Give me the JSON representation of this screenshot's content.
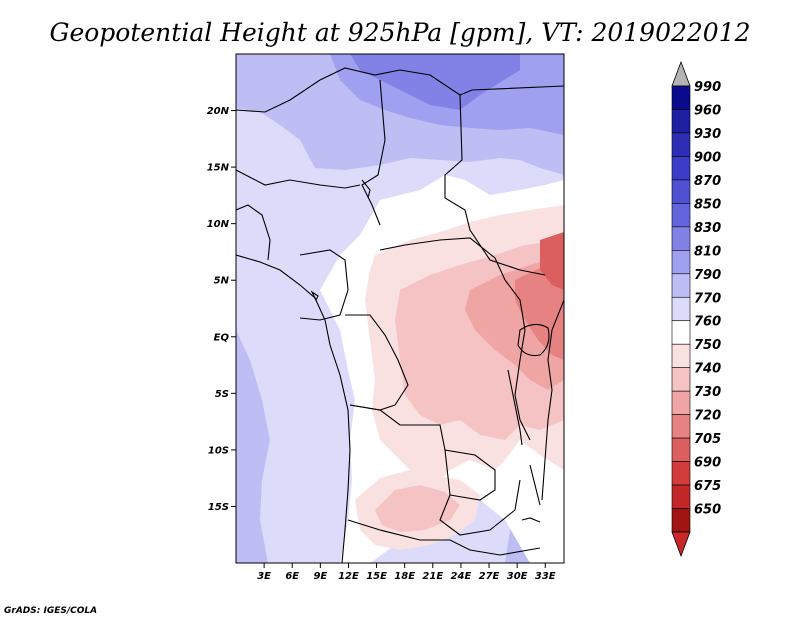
{
  "title": "Geopotential Height at 925hPa [gpm], VT: 2019022012",
  "footer": "GrADS: IGES/COLA",
  "map": {
    "lon_range": [
      0,
      35
    ],
    "lat_range": [
      -20,
      25
    ],
    "lat_ticks": [
      {
        "value": 20,
        "label": "20N"
      },
      {
        "value": 15,
        "label": "15N"
      },
      {
        "value": 10,
        "label": "10N"
      },
      {
        "value": 5,
        "label": "5N"
      },
      {
        "value": 0,
        "label": "EQ"
      },
      {
        "value": -5,
        "label": "5S"
      },
      {
        "value": -10,
        "label": "10S"
      },
      {
        "value": -15,
        "label": "15S"
      }
    ],
    "lon_ticks": [
      {
        "value": 3,
        "label": "3E"
      },
      {
        "value": 6,
        "label": "6E"
      },
      {
        "value": 9,
        "label": "9E"
      },
      {
        "value": 12,
        "label": "12E"
      },
      {
        "value": 15,
        "label": "15E"
      },
      {
        "value": 18,
        "label": "18E"
      },
      {
        "value": 21,
        "label": "21E"
      },
      {
        "value": 24,
        "label": "24E"
      },
      {
        "value": 27,
        "label": "27E"
      },
      {
        "value": 30,
        "label": "30E"
      },
      {
        "value": 33,
        "label": "33E"
      }
    ]
  },
  "colorbar": {
    "levels": [
      {
        "label": "990",
        "color": "#0a0a8c"
      },
      {
        "label": "960",
        "color": "#1e1ea0"
      },
      {
        "label": "930",
        "color": "#2d2db4"
      },
      {
        "label": "900",
        "color": "#3c3cc8"
      },
      {
        "label": "870",
        "color": "#5050d2"
      },
      {
        "label": "850",
        "color": "#6464dc"
      },
      {
        "label": "830",
        "color": "#8282e6"
      },
      {
        "label": "810",
        "color": "#a0a0f0"
      },
      {
        "label": "790",
        "color": "#bebef5"
      },
      {
        "label": "770",
        "color": "#dcdcfa"
      },
      {
        "label": "760",
        "color": "#ffffff"
      },
      {
        "label": "750",
        "color": "#fae1e1"
      },
      {
        "label": "740",
        "color": "#f5c3c3"
      },
      {
        "label": "730",
        "color": "#f0a5a5"
      },
      {
        "label": "720",
        "color": "#e68282"
      },
      {
        "label": "705",
        "color": "#dc5f5f"
      },
      {
        "label": "690",
        "color": "#d23c3c"
      },
      {
        "label": "675",
        "color": "#c32828"
      },
      {
        "label": "650",
        "color": "#a01414"
      }
    ],
    "top_arrow_color": "#b4b4b4",
    "bottom_arrow_color": "#c82828"
  }
}
